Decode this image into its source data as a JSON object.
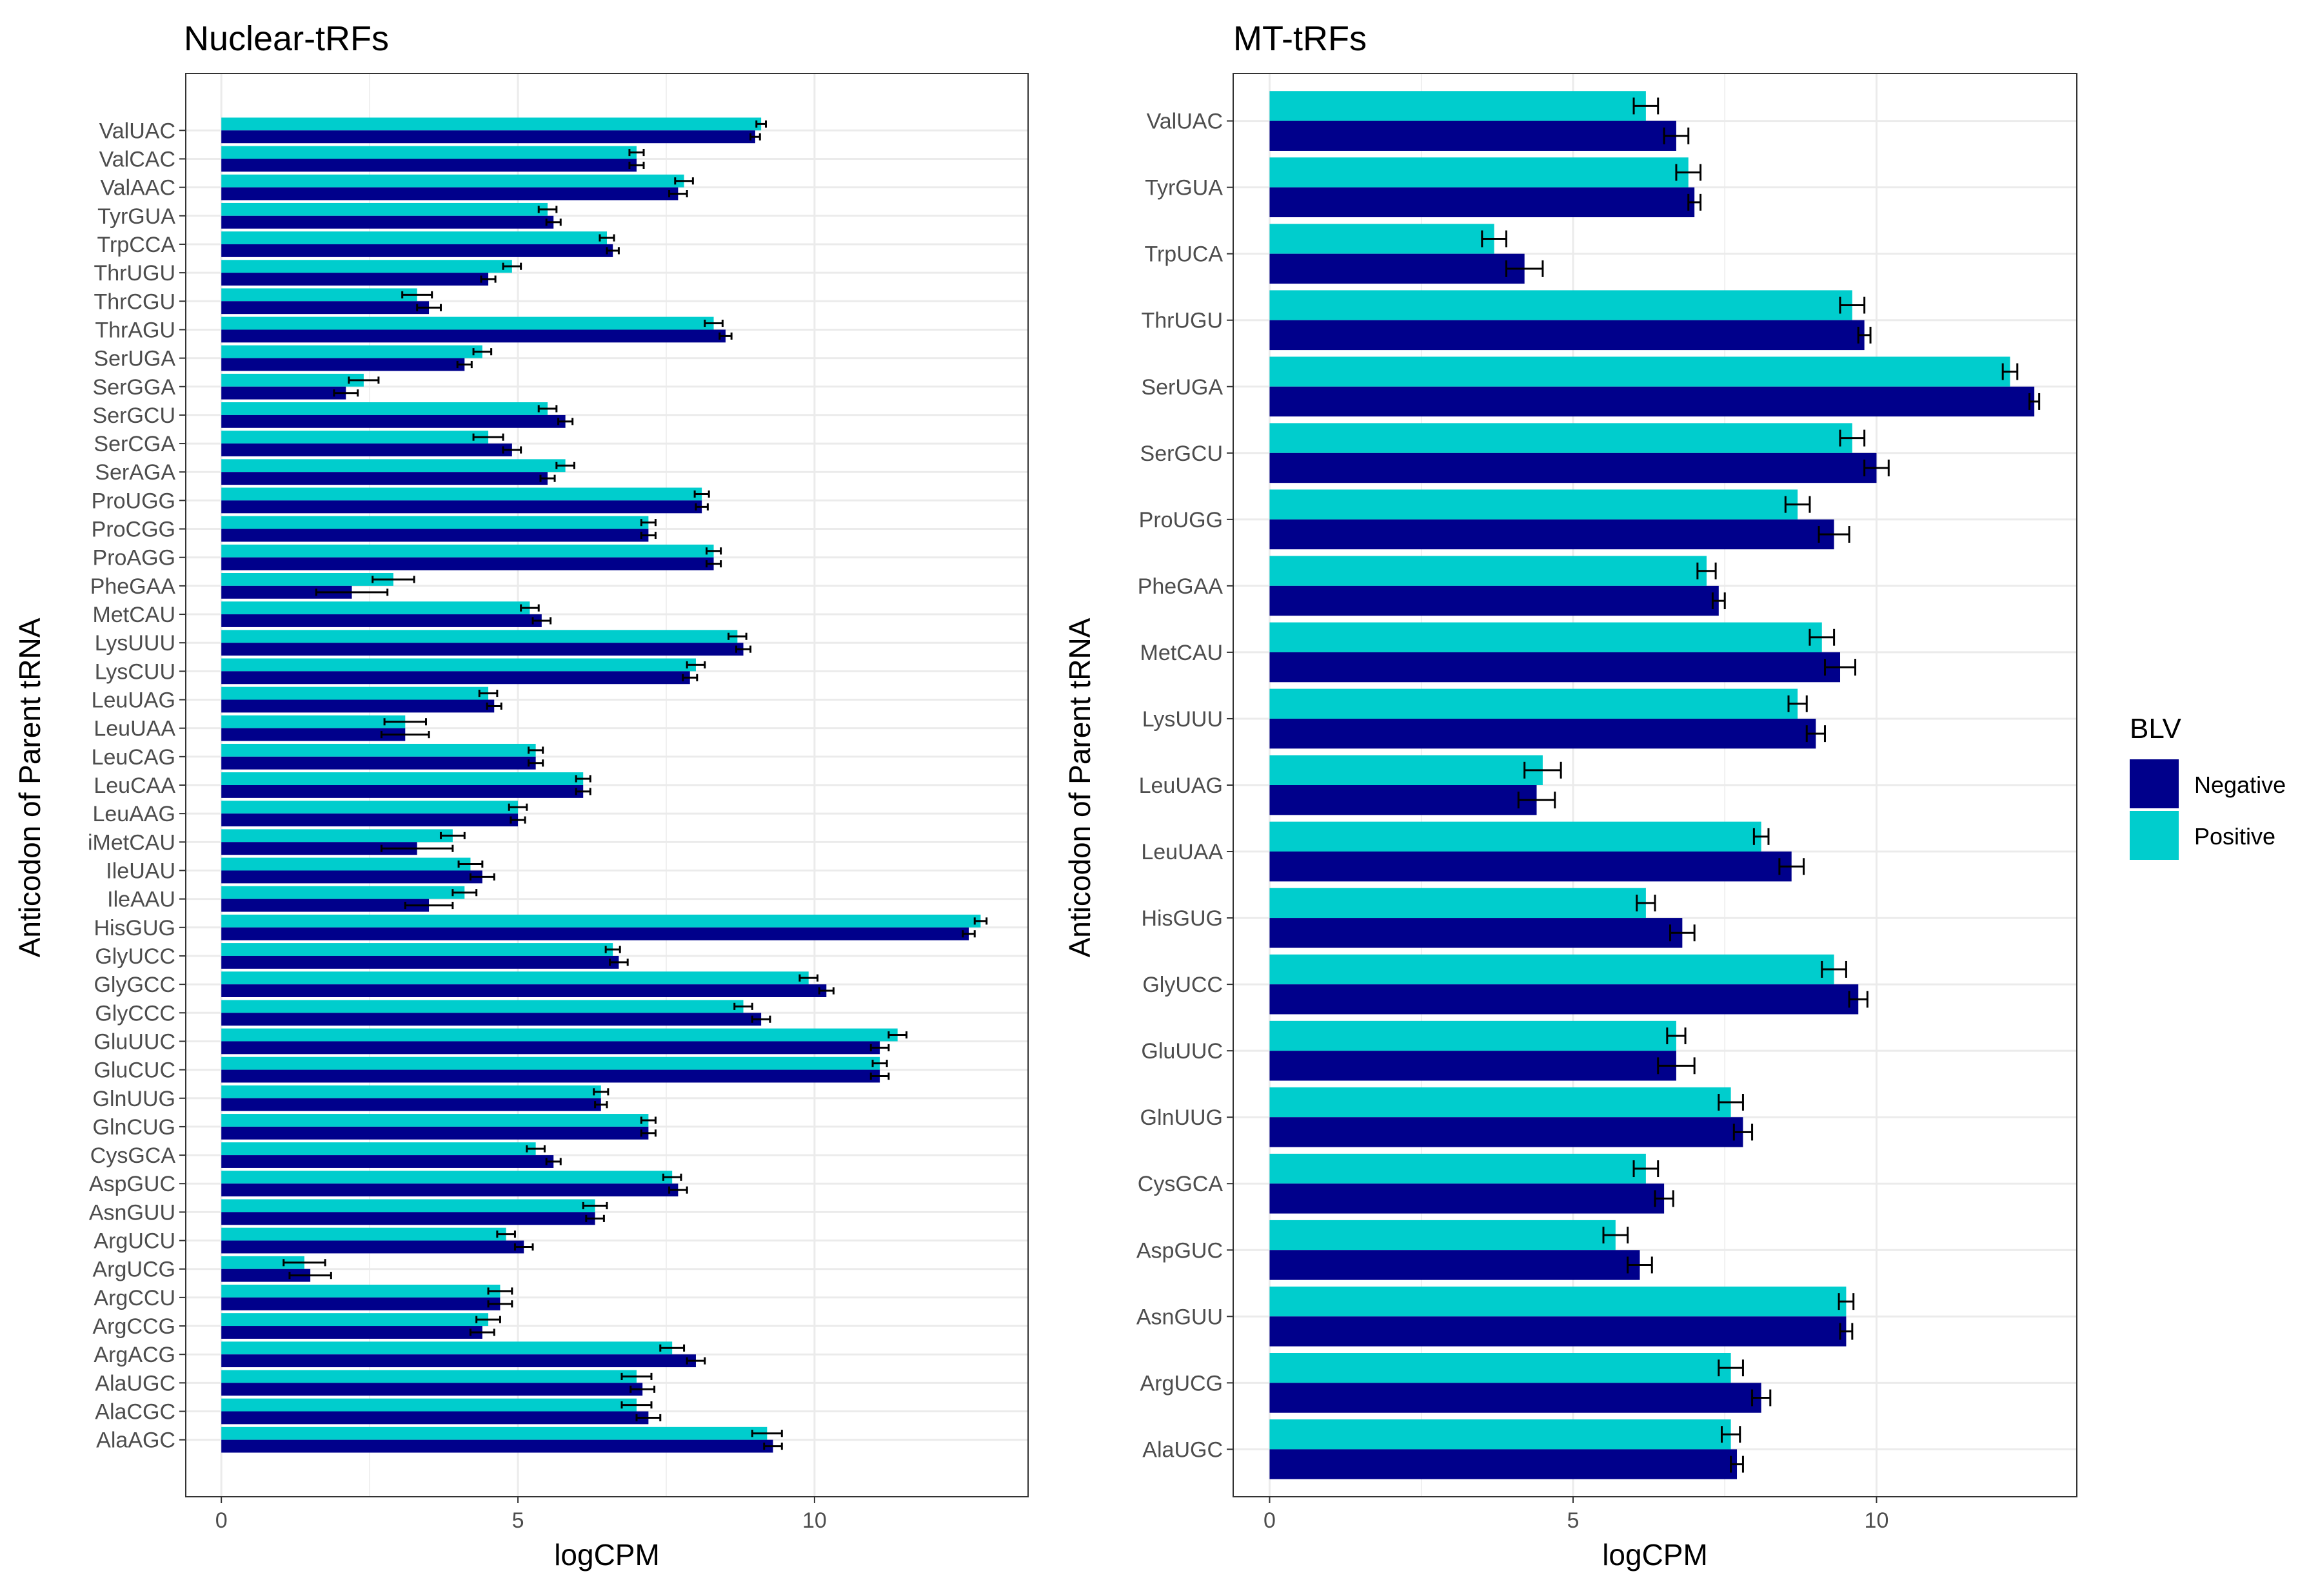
{
  "colors": {
    "negative": "#00008B",
    "positive": "#00CDCD",
    "grid": "#EBEBEB",
    "panel_border": "#333333",
    "error_bar": "#000000"
  },
  "legend": {
    "title": "BLV",
    "negative_label": "Negative",
    "positive_label": "Positive"
  },
  "chart_data": [
    {
      "type": "bar",
      "orientation": "horizontal",
      "title": "Nuclear-tRFs",
      "xlabel": "logCPM",
      "ylabel": "Anticodon of Parent tRNA",
      "xlim": [
        -0.6,
        13.6
      ],
      "xticks": [
        0,
        5,
        10
      ],
      "xtick_labels": [
        "0",
        "5",
        "10"
      ],
      "grid": true,
      "categories": [
        "ValUAC",
        "ValCAC",
        "ValAAC",
        "TyrGUA",
        "TrpCCA",
        "ThrUGU",
        "ThrCGU",
        "ThrAGU",
        "SerUGA",
        "SerGGA",
        "SerGCU",
        "SerCGA",
        "SerAGA",
        "ProUGG",
        "ProCGG",
        "ProAGG",
        "PheGAA",
        "MetCAU",
        "LysUUU",
        "LysCUU",
        "LeuUAG",
        "LeuUAA",
        "LeuCAG",
        "LeuCAA",
        "LeuAAG",
        "iMetCAU",
        "IleUAU",
        "IleAAU",
        "HisGUG",
        "GlyUCC",
        "GlyGCC",
        "GlyCCC",
        "GluUUC",
        "GluCUC",
        "GlnUUG",
        "GlnCUG",
        "CysGCA",
        "AspGUC",
        "AsnGUU",
        "ArgUCU",
        "ArgUCG",
        "ArgCCU",
        "ArgCCG",
        "ArgACG",
        "AlaUGC",
        "AlaCGC",
        "AlaAGC"
      ],
      "series": [
        {
          "name": "Positive",
          "values": [
            9.1,
            7.0,
            7.8,
            5.5,
            6.5,
            4.9,
            3.3,
            8.3,
            4.4,
            2.4,
            5.5,
            4.5,
            5.8,
            8.1,
            7.2,
            8.3,
            2.9,
            5.2,
            8.7,
            8.0,
            4.5,
            3.1,
            5.3,
            6.1,
            5.0,
            3.9,
            4.2,
            4.1,
            12.8,
            6.6,
            9.9,
            8.8,
            11.4,
            11.1,
            6.4,
            7.2,
            5.3,
            7.6,
            6.3,
            4.8,
            1.4,
            4.7,
            4.5,
            7.6,
            7.0,
            7.0,
            9.2
          ],
          "errors": [
            0.08,
            0.12,
            0.15,
            0.15,
            0.12,
            0.15,
            0.25,
            0.15,
            0.15,
            0.25,
            0.15,
            0.25,
            0.15,
            0.12,
            0.12,
            0.12,
            0.35,
            0.15,
            0.15,
            0.15,
            0.15,
            0.35,
            0.12,
            0.12,
            0.15,
            0.2,
            0.2,
            0.2,
            0.1,
            0.12,
            0.15,
            0.15,
            0.15,
            0.12,
            0.12,
            0.12,
            0.15,
            0.15,
            0.2,
            0.15,
            0.35,
            0.2,
            0.2,
            0.2,
            0.25,
            0.25,
            0.25
          ]
        },
        {
          "name": "Negative",
          "values": [
            9.0,
            7.0,
            7.7,
            5.6,
            6.6,
            4.5,
            3.5,
            8.5,
            4.1,
            2.1,
            5.8,
            4.9,
            5.5,
            8.1,
            7.2,
            8.3,
            2.2,
            5.4,
            8.8,
            7.9,
            4.6,
            3.1,
            5.3,
            6.1,
            5.0,
            3.3,
            4.4,
            3.5,
            12.6,
            6.7,
            10.2,
            9.1,
            11.1,
            11.1,
            6.4,
            7.2,
            5.6,
            7.7,
            6.3,
            5.1,
            1.5,
            4.7,
            4.4,
            8.0,
            7.1,
            7.2,
            9.3
          ],
          "errors": [
            0.08,
            0.12,
            0.15,
            0.12,
            0.1,
            0.12,
            0.2,
            0.1,
            0.12,
            0.2,
            0.12,
            0.15,
            0.12,
            0.1,
            0.12,
            0.12,
            0.6,
            0.15,
            0.12,
            0.12,
            0.12,
            0.4,
            0.12,
            0.12,
            0.12,
            0.6,
            0.2,
            0.4,
            0.1,
            0.15,
            0.12,
            0.15,
            0.15,
            0.15,
            0.1,
            0.12,
            0.12,
            0.15,
            0.15,
            0.15,
            0.35,
            0.2,
            0.2,
            0.15,
            0.2,
            0.2,
            0.15
          ]
        }
      ]
    },
    {
      "type": "bar",
      "orientation": "horizontal",
      "title": "MT-tRFs",
      "xlabel": "logCPM",
      "ylabel": "Anticodon of Parent tRNA",
      "xlim": [
        -0.6,
        13.3
      ],
      "xticks": [
        0,
        5,
        10
      ],
      "xtick_labels": [
        "0",
        "5",
        "10"
      ],
      "grid": true,
      "categories": [
        "ValUAC",
        "TyrGUA",
        "TrpUCA",
        "ThrUGU",
        "SerUGA",
        "SerGCU",
        "ProUGG",
        "PheGAA",
        "MetCAU",
        "LysUUU",
        "LeuUAG",
        "LeuUAA",
        "HisGUG",
        "GlyUCC",
        "GluUUC",
        "GlnUUG",
        "CysGCA",
        "AspGUC",
        "AsnGUU",
        "ArgUCG",
        "AlaUGC"
      ],
      "series": [
        {
          "name": "Positive",
          "values": [
            6.2,
            6.9,
            3.7,
            9.6,
            12.2,
            9.6,
            8.7,
            7.2,
            9.1,
            8.7,
            4.5,
            8.1,
            6.2,
            9.3,
            6.7,
            7.6,
            6.2,
            5.7,
            9.5,
            7.6,
            7.6
          ],
          "errors": [
            0.2,
            0.2,
            0.2,
            0.2,
            0.12,
            0.2,
            0.2,
            0.15,
            0.2,
            0.15,
            0.3,
            0.12,
            0.15,
            0.2,
            0.15,
            0.2,
            0.2,
            0.2,
            0.12,
            0.2,
            0.15
          ]
        },
        {
          "name": "Negative",
          "values": [
            6.7,
            7.0,
            4.2,
            9.8,
            12.6,
            10.0,
            9.3,
            7.4,
            9.4,
            9.0,
            4.4,
            8.6,
            6.8,
            9.7,
            6.7,
            7.8,
            6.5,
            6.1,
            9.5,
            8.1,
            7.7
          ],
          "errors": [
            0.2,
            0.1,
            0.3,
            0.1,
            0.08,
            0.2,
            0.25,
            0.1,
            0.25,
            0.15,
            0.3,
            0.2,
            0.2,
            0.15,
            0.3,
            0.15,
            0.15,
            0.2,
            0.1,
            0.15,
            0.1
          ]
        }
      ]
    }
  ]
}
